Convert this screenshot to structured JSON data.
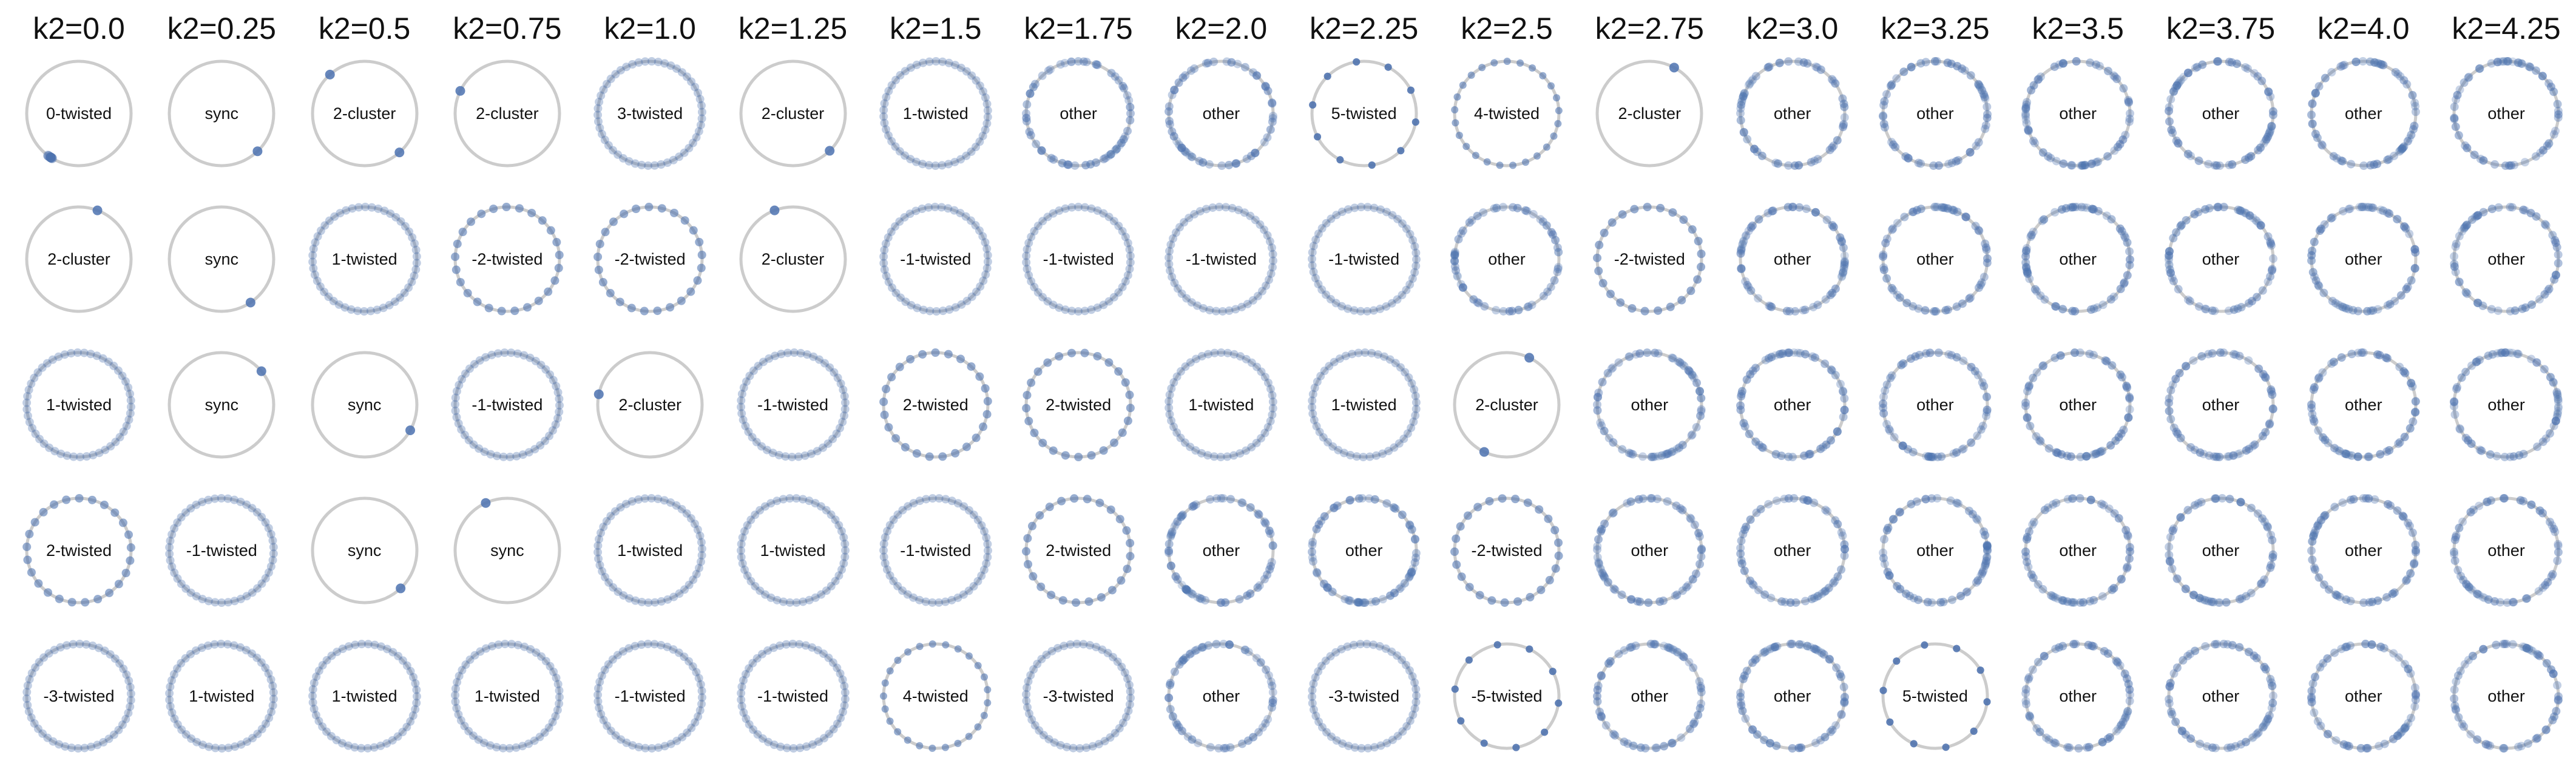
{
  "colors": {
    "ring": "#cccccc",
    "oscillator": "#4c72b0"
  },
  "columns": [
    {
      "header": "k2=0.0",
      "states": [
        "0-twisted",
        "2-cluster",
        "1-twisted",
        "2-twisted",
        "-3-twisted"
      ]
    },
    {
      "header": "k2=0.25",
      "states": [
        "sync",
        "sync",
        "sync",
        "-1-twisted",
        "1-twisted"
      ]
    },
    {
      "header": "k2=0.5",
      "states": [
        "2-cluster",
        "1-twisted",
        "sync",
        "sync",
        "1-twisted"
      ]
    },
    {
      "header": "k2=0.75",
      "states": [
        "2-cluster",
        "-2-twisted",
        "-1-twisted",
        "sync",
        "1-twisted"
      ]
    },
    {
      "header": "k2=1.0",
      "states": [
        "3-twisted",
        "-2-twisted",
        "2-cluster",
        "1-twisted",
        "-1-twisted"
      ]
    },
    {
      "header": "k2=1.25",
      "states": [
        "2-cluster",
        "2-cluster",
        "-1-twisted",
        "1-twisted",
        "-1-twisted"
      ]
    },
    {
      "header": "k2=1.5",
      "states": [
        "1-twisted",
        "-1-twisted",
        "2-twisted",
        "-1-twisted",
        "4-twisted"
      ]
    },
    {
      "header": "k2=1.75",
      "states": [
        "other",
        "-1-twisted",
        "2-twisted",
        "2-twisted",
        "-3-twisted"
      ]
    },
    {
      "header": "k2=2.0",
      "states": [
        "other",
        "-1-twisted",
        "1-twisted",
        "other",
        "other"
      ]
    },
    {
      "header": "k2=2.25",
      "states": [
        "5-twisted",
        "-1-twisted",
        "1-twisted",
        "other",
        "-3-twisted"
      ]
    },
    {
      "header": "k2=2.5",
      "states": [
        "4-twisted",
        "other",
        "2-cluster",
        "-2-twisted",
        "-5-twisted"
      ]
    },
    {
      "header": "k2=2.75",
      "states": [
        "2-cluster",
        "-2-twisted",
        "other",
        "other",
        "other"
      ]
    },
    {
      "header": "k2=3.0",
      "states": [
        "other",
        "other",
        "other",
        "other",
        "other"
      ]
    },
    {
      "header": "k2=3.25",
      "states": [
        "other",
        "other",
        "other",
        "other",
        "5-twisted"
      ]
    },
    {
      "header": "k2=3.5",
      "states": [
        "other",
        "other",
        "other",
        "other",
        "other"
      ]
    },
    {
      "header": "k2=3.75",
      "states": [
        "other",
        "other",
        "other",
        "other",
        "other"
      ]
    },
    {
      "header": "k2=4.0",
      "states": [
        "other",
        "other",
        "other",
        "other",
        "other"
      ]
    },
    {
      "header": "k2=4.25",
      "states": [
        "other",
        "other",
        "other",
        "other",
        "other"
      ]
    }
  ]
}
